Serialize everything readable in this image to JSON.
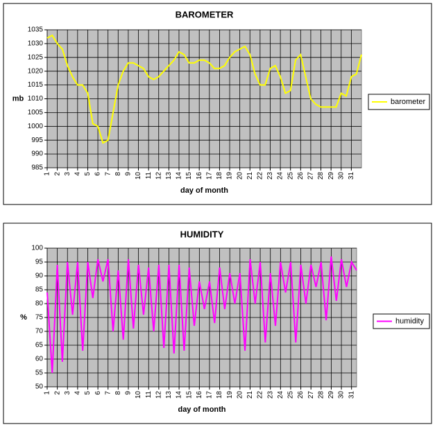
{
  "chart_data": [
    {
      "type": "line",
      "title": "BAROMETER",
      "x_label": "day of month",
      "y_label": "mb",
      "x": [
        1,
        1.5,
        2,
        2.5,
        3,
        3.5,
        4,
        4.5,
        5,
        5.5,
        6,
        6.5,
        7,
        7.5,
        8,
        8.5,
        9,
        9.5,
        10,
        10.5,
        11,
        11.5,
        12,
        12.5,
        13,
        13.5,
        14,
        14.5,
        15,
        15.5,
        16,
        16.5,
        17,
        17.5,
        18,
        18.5,
        19,
        19.5,
        20,
        20.5,
        21,
        21.5,
        22,
        22.5,
        23,
        23.5,
        24,
        24.5,
        25,
        25.5,
        26,
        26.5,
        27,
        27.5,
        28,
        28.5,
        29,
        29.5,
        30,
        30.5,
        31,
        31.5,
        32
      ],
      "series": [
        {
          "name": "barometer",
          "color": "#ffff00",
          "values": [
            1032,
            1033,
            1030,
            1028,
            1022,
            1018,
            1015,
            1015,
            1012,
            1001,
            1000,
            994,
            995,
            1005,
            1015,
            1020,
            1023,
            1023,
            1022,
            1021,
            1018,
            1017,
            1018,
            1020,
            1022,
            1024,
            1027,
            1026,
            1023,
            1023,
            1024,
            1024,
            1023,
            1021,
            1021,
            1022,
            1025,
            1027,
            1028,
            1029,
            1026,
            1019,
            1015,
            1015,
            1021,
            1022,
            1018,
            1012,
            1013,
            1024,
            1026,
            1018,
            1010,
            1008,
            1007,
            1007,
            1007,
            1007,
            1012,
            1011,
            1018,
            1019,
            1026
          ]
        }
      ],
      "xlim": [
        1,
        32
      ],
      "xticks": [
        1,
        2,
        3,
        4,
        5,
        6,
        7,
        8,
        9,
        10,
        11,
        12,
        13,
        14,
        15,
        16,
        17,
        18,
        19,
        20,
        21,
        22,
        23,
        24,
        25,
        26,
        27,
        28,
        29,
        30,
        31
      ],
      "ylim": [
        985,
        1035
      ],
      "yticks": [
        985,
        990,
        995,
        1000,
        1005,
        1010,
        1015,
        1020,
        1025,
        1030,
        1035
      ],
      "grid": true,
      "legend": "right"
    },
    {
      "type": "line",
      "title": "HUMIDITY",
      "x_label": "day of month",
      "y_label": "%",
      "x": [
        1,
        1.5,
        2,
        2.5,
        3,
        3.5,
        4,
        4.5,
        5,
        5.5,
        6,
        6.5,
        7,
        7.5,
        8,
        8.5,
        9,
        9.5,
        10,
        10.5,
        11,
        11.5,
        12,
        12.5,
        13,
        13.5,
        14,
        14.5,
        15,
        15.5,
        16,
        16.5,
        17,
        17.5,
        18,
        18.5,
        19,
        19.5,
        20,
        20.5,
        21,
        21.5,
        22,
        22.5,
        23,
        23.5,
        24,
        24.5,
        25,
        25.5,
        26,
        26.5,
        27,
        27.5,
        28,
        28.5,
        29,
        29.5,
        30,
        30.5,
        31,
        31.5
      ],
      "series": [
        {
          "name": "humidity",
          "color": "#ff00ff",
          "values": [
            84,
            55,
            94,
            59,
            95,
            76,
            95,
            63,
            95,
            82,
            96,
            88,
            96,
            70,
            92,
            67,
            96,
            71,
            94,
            76,
            93,
            70,
            94,
            64,
            94,
            62,
            94,
            63,
            93,
            72,
            88,
            78,
            88,
            73,
            93,
            78,
            91,
            80,
            91,
            63,
            96,
            80,
            95,
            66,
            91,
            72,
            95,
            84,
            95,
            66,
            94,
            80,
            94,
            86,
            95,
            74,
            97,
            81,
            96,
            86,
            95,
            92
          ]
        }
      ],
      "xlim": [
        1,
        31.5
      ],
      "xticks": [
        1,
        2,
        3,
        4,
        5,
        6,
        7,
        8,
        9,
        10,
        11,
        12,
        13,
        14,
        15,
        16,
        17,
        18,
        19,
        20,
        21,
        22,
        23,
        24,
        25,
        26,
        27,
        28,
        29,
        30,
        31
      ],
      "ylim": [
        50,
        100
      ],
      "yticks": [
        50,
        55,
        60,
        65,
        70,
        75,
        80,
        85,
        90,
        95,
        100
      ],
      "grid": true,
      "legend": "right"
    }
  ]
}
